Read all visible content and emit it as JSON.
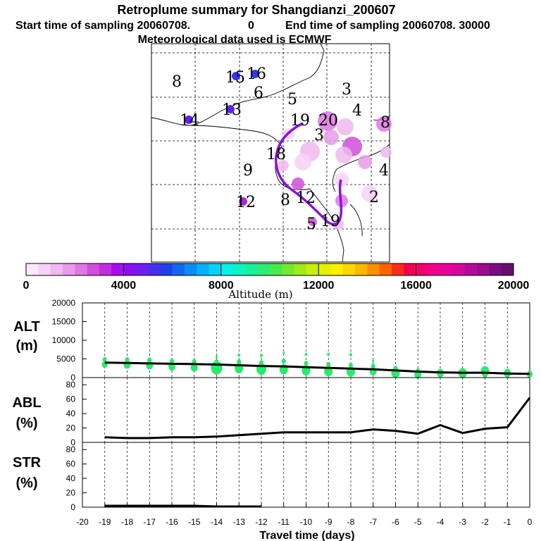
{
  "header": {
    "title": "Retroplume summary for Shangdianzi_200607",
    "start_label": "Start time of sampling 20060708.",
    "start_value": "0",
    "end_label": "End time of sampling 20060708. 30000",
    "met": "Meteorological data used is ECMWF"
  },
  "colorbar": {
    "title": "Altitude (m)",
    "ticks": [
      "0",
      "4000",
      "8000",
      "12000",
      "16000",
      "20000"
    ],
    "colors": [
      "#fbe8fb",
      "#f6d2f6",
      "#efb9ef",
      "#e79be9",
      "#de78e1",
      "#d04fdb",
      "#c22ce0",
      "#a80cf0",
      "#8c10f4",
      "#6e20f0",
      "#4630f0",
      "#2040ee",
      "#1466f2",
      "#0a8cf6",
      "#06b0fa",
      "#06d4fa",
      "#05f2e6",
      "#0cf4c0",
      "#18f09a",
      "#2aee74",
      "#46ec4e",
      "#72ea2e",
      "#a0ea18",
      "#c8ee0a",
      "#e6f200",
      "#fcf000",
      "#fcd800",
      "#fcb800",
      "#fc9000",
      "#fc6400",
      "#f82c1c",
      "#f40050",
      "#f2006c",
      "#f00088",
      "#ea009a",
      "#d4089e",
      "#b40c9a",
      "#9a0c90",
      "#7a0c80",
      "#62106c"
    ]
  },
  "map": {
    "labels": [
      {
        "t": "8"
      },
      {
        "t": "15"
      },
      {
        "t": "16"
      },
      {
        "t": "6"
      },
      {
        "t": "5"
      },
      {
        "t": "3"
      },
      {
        "t": "4"
      },
      {
        "t": "14"
      },
      {
        "t": "13"
      },
      {
        "t": "19"
      },
      {
        "t": "3"
      },
      {
        "t": "8"
      },
      {
        "t": "9"
      },
      {
        "t": "12"
      },
      {
        "t": "8"
      },
      {
        "t": "20"
      },
      {
        "t": "12"
      },
      {
        "t": "4"
      },
      {
        "t": "19"
      },
      {
        "t": "5"
      },
      {
        "t": "18"
      },
      {
        "t": "2"
      }
    ]
  },
  "chart_data": [
    {
      "type": "scatter+line",
      "panel_label": "ALT\n(m)",
      "label_line1": "ALT",
      "label_line2": "(m)",
      "ylim": [
        0,
        20000
      ],
      "yticks": [
        "20000",
        "15000",
        "10000",
        "5000",
        "0"
      ],
      "ytick_values": [
        20000,
        15000,
        10000,
        5000,
        0
      ],
      "x": [
        -19,
        -18,
        -17,
        -16,
        -15,
        -14,
        -13,
        -12,
        -11,
        -10,
        -9,
        -8,
        -7,
        -6,
        -5,
        -4,
        -3,
        -2,
        -1,
        0
      ],
      "median_line": [
        4000,
        3900,
        3800,
        3700,
        3600,
        3500,
        3300,
        3100,
        3000,
        2800,
        2600,
        2400,
        2200,
        1900,
        1600,
        1400,
        1300,
        1300,
        1100,
        1000
      ],
      "scatter_points": [
        {
          "x": -19,
          "y": 3500,
          "s": 4
        },
        {
          "x": -19,
          "y": 4800,
          "s": 3
        },
        {
          "x": -18,
          "y": 3500,
          "s": 5
        },
        {
          "x": -18,
          "y": 4800,
          "s": 3
        },
        {
          "x": -17,
          "y": 3300,
          "s": 5
        },
        {
          "x": -17,
          "y": 4700,
          "s": 3
        },
        {
          "x": -16,
          "y": 3000,
          "s": 5
        },
        {
          "x": -16,
          "y": 4400,
          "s": 3
        },
        {
          "x": -15,
          "y": 2700,
          "s": 5
        },
        {
          "x": -15,
          "y": 4300,
          "s": 3
        },
        {
          "x": -14,
          "y": 2600,
          "s": 8
        },
        {
          "x": -14,
          "y": 4200,
          "s": 3
        },
        {
          "x": -14,
          "y": 5600,
          "s": 1.5
        },
        {
          "x": -14,
          "y": 8500,
          "s": 1
        },
        {
          "x": -13,
          "y": 2500,
          "s": 6
        },
        {
          "x": -13,
          "y": 4200,
          "s": 3
        },
        {
          "x": -13,
          "y": 6000,
          "s": 2
        },
        {
          "x": -12,
          "y": 2300,
          "s": 7
        },
        {
          "x": -12,
          "y": 4000,
          "s": 3
        },
        {
          "x": -12,
          "y": 5900,
          "s": 2
        },
        {
          "x": -11,
          "y": 2200,
          "s": 6
        },
        {
          "x": -11,
          "y": 4400,
          "s": 3
        },
        {
          "x": -11,
          "y": 6600,
          "s": 1.5
        },
        {
          "x": -10,
          "y": 1900,
          "s": 6
        },
        {
          "x": -10,
          "y": 3800,
          "s": 3
        },
        {
          "x": -10,
          "y": 6200,
          "s": 2
        },
        {
          "x": -10,
          "y": 7400,
          "s": 1
        },
        {
          "x": -9,
          "y": 1700,
          "s": 6
        },
        {
          "x": -9,
          "y": 3500,
          "s": 3
        },
        {
          "x": -9,
          "y": 6200,
          "s": 2
        },
        {
          "x": -9,
          "y": 7200,
          "s": 1
        },
        {
          "x": -8,
          "y": 1600,
          "s": 6
        },
        {
          "x": -8,
          "y": 3300,
          "s": 3
        },
        {
          "x": -8,
          "y": 6100,
          "s": 2
        },
        {
          "x": -8,
          "y": 7000,
          "s": 1
        },
        {
          "x": -7,
          "y": 1700,
          "s": 5
        },
        {
          "x": -7,
          "y": 3000,
          "s": 3
        },
        {
          "x": -7,
          "y": 4500,
          "s": 1.5
        },
        {
          "x": -6,
          "y": 1300,
          "s": 6
        },
        {
          "x": -6,
          "y": 2500,
          "s": 3
        },
        {
          "x": -5,
          "y": 900,
          "s": 5
        },
        {
          "x": -5,
          "y": 1800,
          "s": 3
        },
        {
          "x": -4,
          "y": 1200,
          "s": 5
        },
        {
          "x": -3,
          "y": 1200,
          "s": 6
        },
        {
          "x": -2,
          "y": 1700,
          "s": 6
        },
        {
          "x": -2,
          "y": 900,
          "s": 4
        },
        {
          "x": -1,
          "y": 1200,
          "s": 5
        },
        {
          "x": 0,
          "y": 900,
          "s": 4
        }
      ]
    },
    {
      "type": "line",
      "panel_label": "ABL\n(%)",
      "label_line1": "ABL",
      "label_line2": "(%)",
      "ylim": [
        0,
        90
      ],
      "yticks": [
        "80",
        "60",
        "40",
        "20",
        "0"
      ],
      "ytick_values": [
        80,
        60,
        40,
        20,
        0
      ],
      "x": [
        -19,
        -18,
        -17,
        -16,
        -15,
        -14,
        -13,
        -12,
        -11,
        -10,
        -9,
        -8,
        -7,
        -6,
        -5,
        -4,
        -3,
        -2,
        -1,
        0
      ],
      "values": [
        7,
        6,
        6,
        7,
        7,
        8,
        10,
        12,
        14,
        14,
        14,
        14,
        18,
        16,
        12,
        24,
        13,
        19,
        21,
        62
      ]
    },
    {
      "type": "line",
      "panel_label": "STR\n(%)",
      "label_line1": "STR",
      "label_line2": "(%)",
      "ylim": [
        0,
        90
      ],
      "yticks": [
        "80",
        "60",
        "40",
        "20",
        "0"
      ],
      "ytick_values": [
        80,
        60,
        40,
        20,
        0
      ],
      "x": [
        -19,
        -18,
        -17,
        -16,
        -15,
        -14,
        -13,
        -12
      ],
      "values": [
        2,
        2,
        2,
        2,
        2,
        1,
        1,
        1
      ],
      "xlabel": "Travel time (days)",
      "xticks": [
        "-20",
        "-19",
        "-18",
        "-17",
        "-16",
        "-15",
        "-14",
        "-13",
        "-12",
        "-11",
        "-10",
        "-9",
        "-8",
        "-7",
        "-6",
        "-5",
        "-4",
        "-3",
        "-2",
        "-1",
        "0"
      ],
      "xlim": [
        -20,
        0
      ]
    }
  ]
}
